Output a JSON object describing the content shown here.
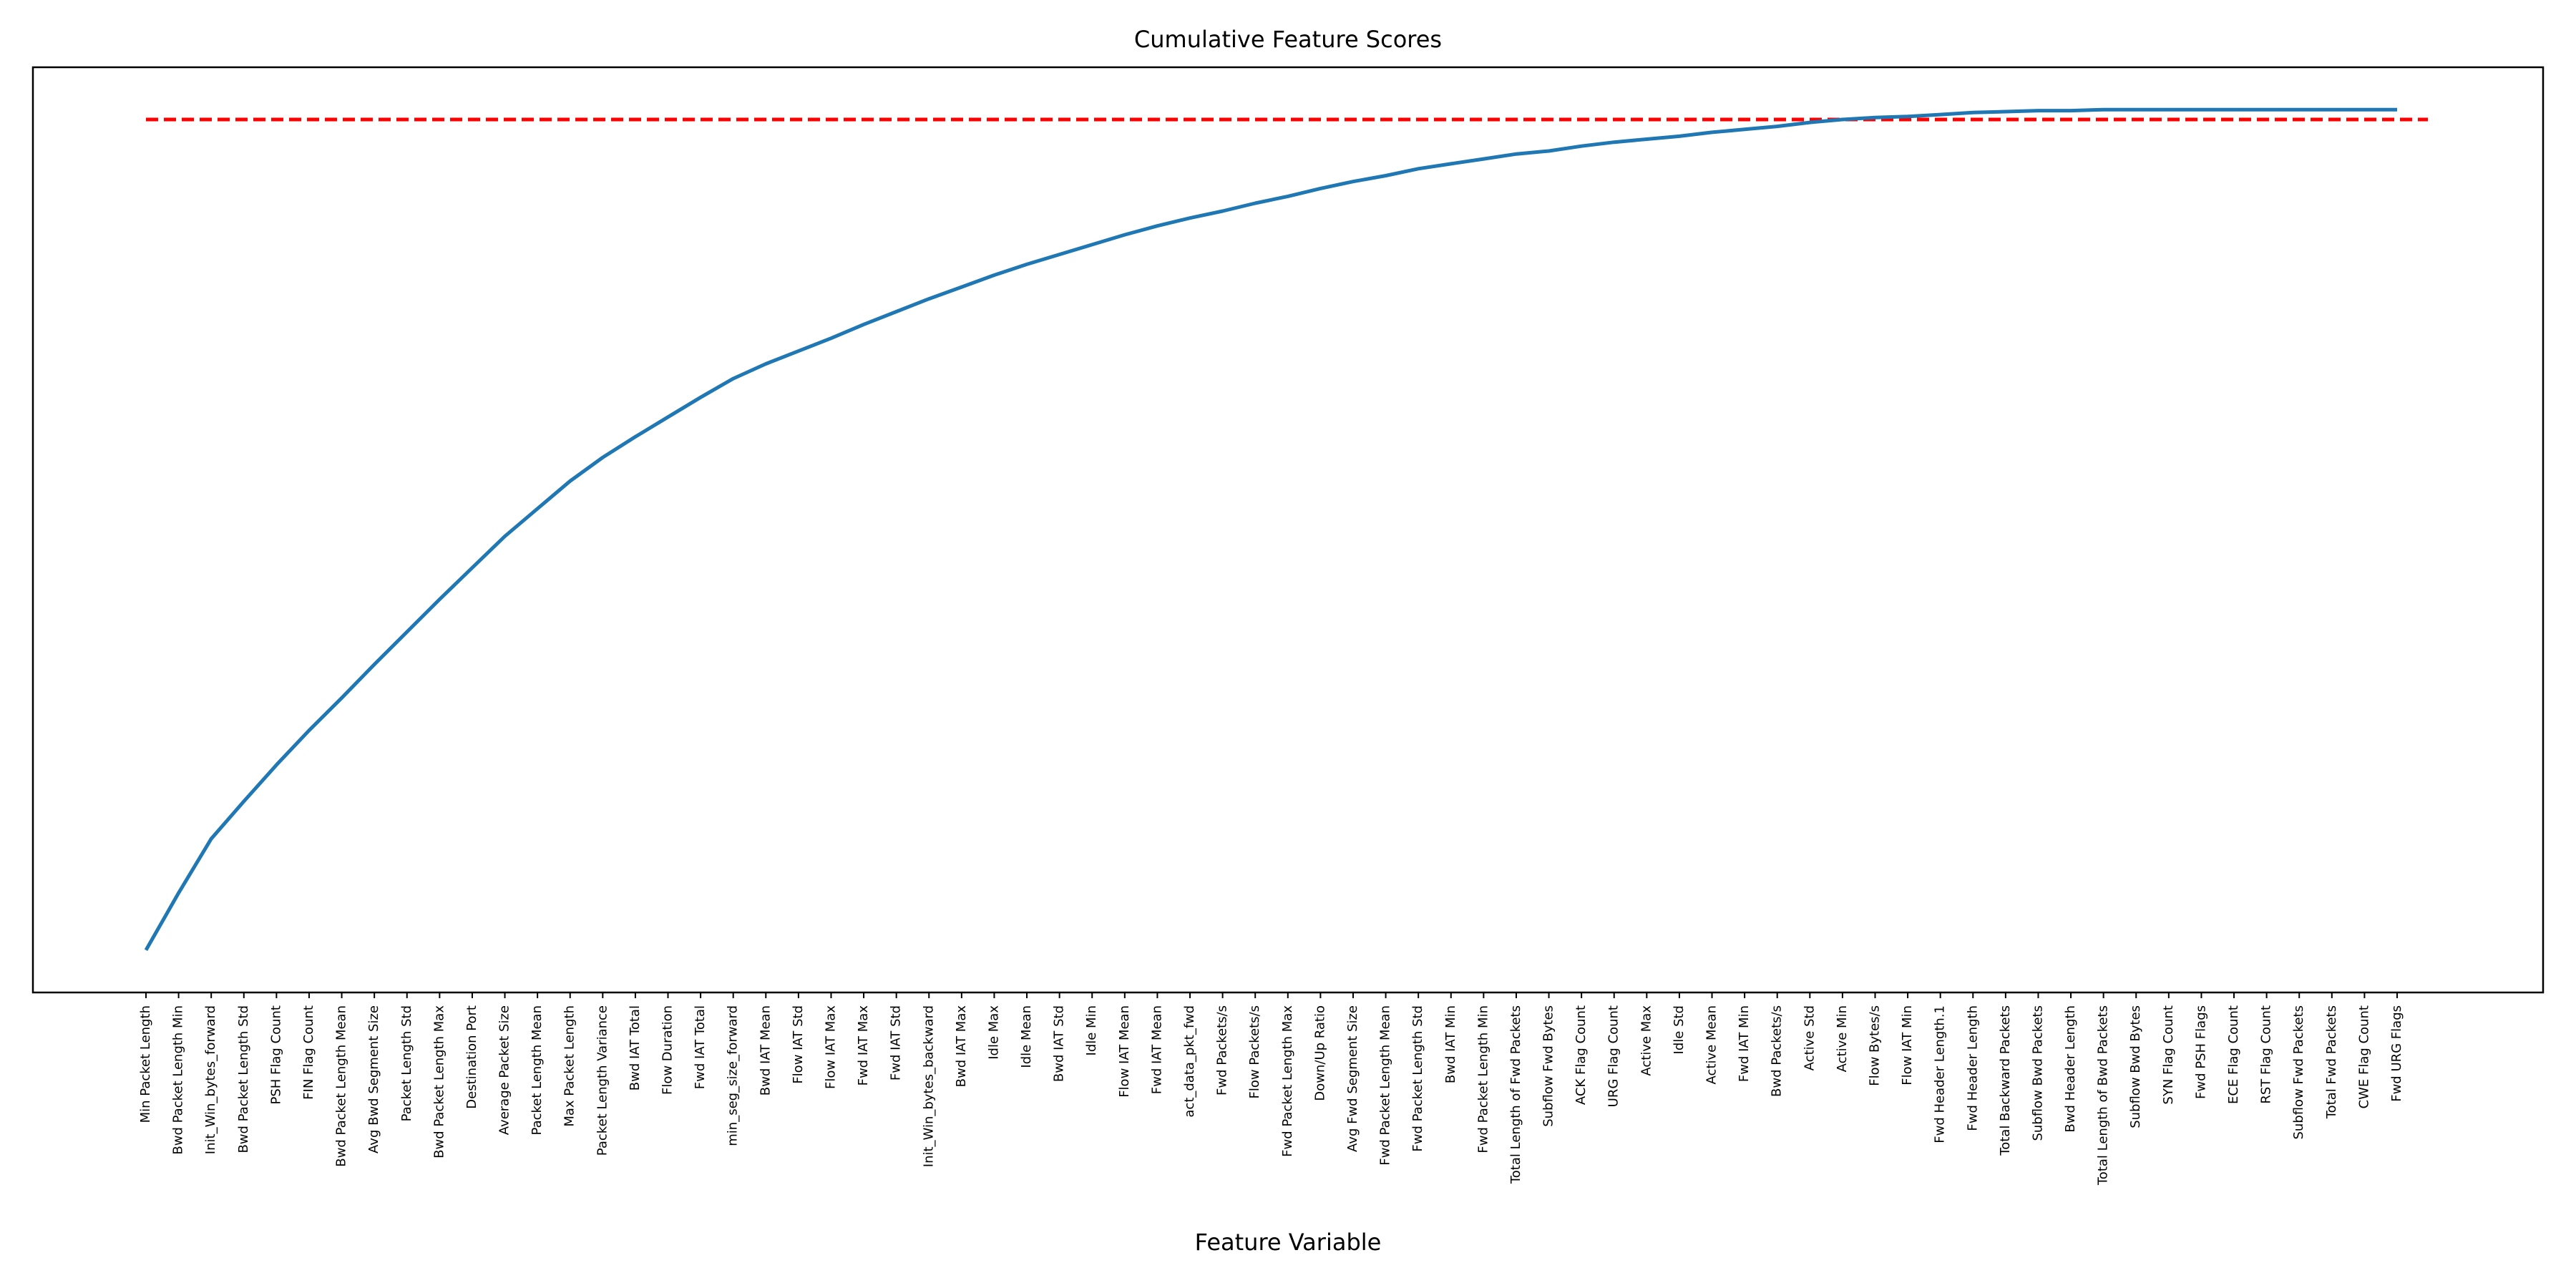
{
  "chart_data": {
    "type": "line",
    "title": "Cumulative Feature Scores",
    "x_label": "Feature Variable",
    "categories": [
      "Min Packet Length",
      "Bwd Packet Length Min",
      "Init_Win_bytes_forward",
      "Bwd Packet Length Std",
      "PSH Flag Count",
      "FIN Flag Count",
      "Bwd Packet Length Mean",
      "Avg Bwd Segment Size",
      "Packet Length Std",
      "Bwd Packet Length Max",
      "Destination Port",
      "Average Packet Size",
      "Packet Length Mean",
      "Max Packet Length",
      "Packet Length Variance",
      "Bwd IAT Total",
      "Flow Duration",
      "Fwd IAT Total",
      "min_seg_size_forward",
      "Bwd IAT Mean",
      "Flow IAT Std",
      "Flow IAT Max",
      "Fwd IAT Max",
      "Fwd IAT Std",
      "Init_Win_bytes_backward",
      "Bwd IAT Max",
      "Idle Max",
      "Idle Mean",
      "Bwd IAT Std",
      "Idle Min",
      "Flow IAT Mean",
      "Fwd IAT Mean",
      "act_data_pkt_fwd",
      "Fwd Packets/s",
      "Flow Packets/s",
      "Fwd Packet Length Max",
      "Down/Up Ratio",
      "Avg Fwd Segment Size",
      "Fwd Packet Length Mean",
      "Fwd Packet Length Std",
      "Bwd IAT Min",
      "Fwd Packet Length Min",
      "Total Length of Fwd Packets",
      "Subflow Fwd Bytes",
      "ACK Flag Count",
      "URG Flag Count",
      "Active Max",
      "Idle Std",
      "Active Mean",
      "Fwd IAT Min",
      "Bwd Packets/s",
      "Active Std",
      "Active Min",
      "Flow Bytes/s",
      "Flow IAT Min",
      "Fwd Header Length.1",
      "Fwd Header Length",
      "Total Backward Packets",
      "Subflow Bwd Packets",
      "Bwd Header Length",
      "Total Length of Bwd Packets",
      "Subflow Bwd Bytes",
      "SYN Flag Count",
      "Fwd PSH Flags",
      "ECE Flag Count",
      "RST Flag Count",
      "Subflow Fwd Packets",
      "Total Fwd Packets",
      "CWE Flag Count",
      "Fwd URG Flags"
    ],
    "values": [
      0.147,
      0.205,
      0.26,
      0.298,
      0.335,
      0.37,
      0.403,
      0.437,
      0.47,
      0.503,
      0.535,
      0.567,
      0.595,
      0.623,
      0.647,
      0.668,
      0.688,
      0.708,
      0.727,
      0.742,
      0.755,
      0.768,
      0.782,
      0.795,
      0.808,
      0.82,
      0.832,
      0.843,
      0.853,
      0.863,
      0.873,
      0.882,
      0.89,
      0.897,
      0.905,
      0.912,
      0.92,
      0.927,
      0.933,
      0.94,
      0.945,
      0.95,
      0.955,
      0.958,
      0.963,
      0.967,
      0.97,
      0.973,
      0.977,
      0.98,
      0.983,
      0.987,
      0.99,
      0.992,
      0.993,
      0.995,
      0.997,
      0.998,
      0.999,
      0.999,
      1.0,
      1.0,
      1.0,
      1.0,
      1.0,
      1.0,
      1.0,
      1.0,
      1.0,
      1.0
    ],
    "color": "#1f77b4",
    "threshold": {
      "value": 0.99,
      "color": "#ff0000"
    },
    "ylim": [
      0.104,
      1.043
    ]
  }
}
